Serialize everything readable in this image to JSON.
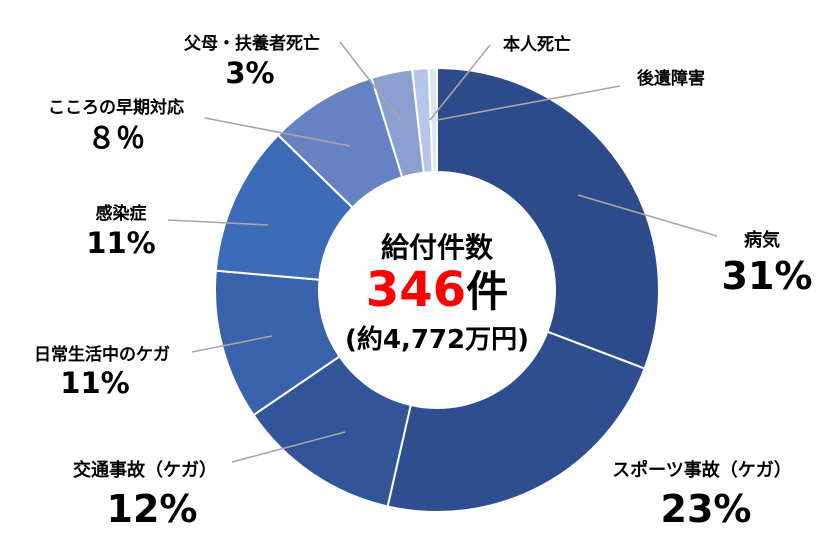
{
  "chart_data": {
    "type": "pie",
    "donut": true,
    "center": {
      "label": "給付件数",
      "count": "346",
      "count_unit": "件",
      "count_color": "#ff0000",
      "amount": "(約4,772万円)"
    },
    "slices": [
      {
        "label": "病気",
        "value": 31,
        "value_label": "31%",
        "color": "#2d4b8b",
        "label_color": "#ff0000"
      },
      {
        "label": "スポーツ事故（ケガ）",
        "value": 23,
        "value_label": "23%",
        "color": "#2f4e90",
        "label_color": "#ff0000"
      },
      {
        "label": "交通事故（ケガ）",
        "value": 12,
        "value_label": "12%",
        "color": "#325499",
        "label_color": "#ff0000"
      },
      {
        "label": "日常生活中のケガ",
        "value": 11,
        "value_label": "11%",
        "color": "#3962ad",
        "label_color": "#000000"
      },
      {
        "label": "感染症",
        "value": 11,
        "value_label": "11%",
        "color": "#3c6bb8",
        "label_color": "#000000"
      },
      {
        "label": "こころの早期対応",
        "value": 8,
        "value_label": "８％",
        "color": "#6782c2",
        "label_color": "#000000"
      },
      {
        "label": "父母・扶養者死亡",
        "value": 3,
        "value_label": "3%",
        "color": "#8b9fd1",
        "label_color": "#000000"
      },
      {
        "label": "本人死亡",
        "value": 1.2,
        "color": "#b6c6e8",
        "label_color": "#000000"
      },
      {
        "label": "後遺障害",
        "value": 0.6,
        "color": "#dde6f6",
        "label_color": "#000000"
      }
    ]
  }
}
